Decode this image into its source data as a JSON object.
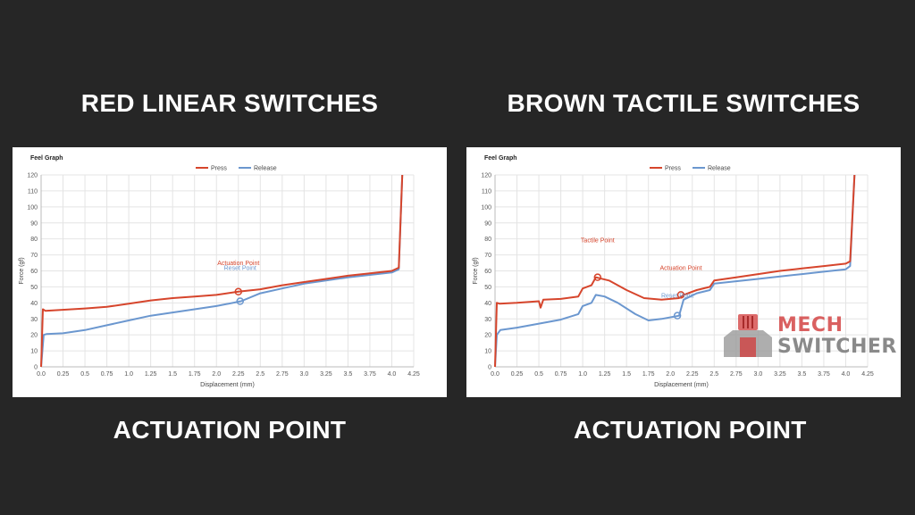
{
  "page": {
    "title_left": "RED LINEAR SWITCHES",
    "title_right": "BROWN TACTILE SWITCHES",
    "caption_left": "ACTUATION POINT",
    "caption_right": "ACTUATION POINT"
  },
  "logo": {
    "line1": "MECH",
    "line2": "SWITCHER",
    "accent": "#d23a3a"
  },
  "colors": {
    "press": "#d6452c",
    "release": "#6b97cf",
    "background": "#262626"
  },
  "chart_data": [
    {
      "type": "line",
      "title": "Feel Graph",
      "xlabel": "Displacement (mm)",
      "ylabel": "Force (gf)",
      "xlim": [
        0,
        4.25
      ],
      "ylim": [
        0,
        120
      ],
      "x_ticks": [
        "0.0",
        "0.25",
        "0.5",
        "0.75",
        "1.0",
        "1.25",
        "1.5",
        "1.75",
        "2.0",
        "2.25",
        "2.5",
        "2.75",
        "3.0",
        "3.25",
        "3.5",
        "3.75",
        "4.0",
        "4.25"
      ],
      "y_ticks": [
        "0",
        "10",
        "20",
        "30",
        "40",
        "50",
        "60",
        "70",
        "80",
        "90",
        "100",
        "110",
        "120"
      ],
      "grid": true,
      "legend": "top",
      "series": [
        {
          "name": "Press",
          "x": [
            0.0,
            0.02,
            0.05,
            0.2,
            0.5,
            0.75,
            1.0,
            1.25,
            1.5,
            1.75,
            2.0,
            2.25,
            2.5,
            2.75,
            3.0,
            3.25,
            3.5,
            3.75,
            4.0,
            4.08,
            4.12
          ],
          "y": [
            0,
            36,
            35,
            35.5,
            36.5,
            37.5,
            39.5,
            41.5,
            43,
            44,
            45,
            47,
            48.5,
            51,
            53,
            55,
            57,
            58.5,
            60,
            62,
            120
          ]
        },
        {
          "name": "Release",
          "x": [
            0.0,
            0.03,
            0.06,
            0.25,
            0.5,
            0.75,
            1.0,
            1.25,
            1.5,
            1.75,
            2.0,
            2.28,
            2.5,
            2.75,
            3.0,
            3.25,
            3.5,
            3.75,
            4.0,
            4.08,
            4.12
          ],
          "y": [
            0,
            20,
            20.5,
            21,
            23,
            26,
            29,
            32,
            34,
            36,
            38,
            41,
            46,
            49,
            52,
            54,
            56,
            57.5,
            59,
            61,
            120
          ]
        }
      ],
      "annotations": [
        {
          "label": "Actuation Point",
          "x": 2.25,
          "y": 47,
          "series": "Press"
        },
        {
          "label": "Reset Point",
          "x": 2.27,
          "y": 41,
          "series": "Release"
        }
      ]
    },
    {
      "type": "line",
      "title": "Feel Graph",
      "xlabel": "Displacement (mm)",
      "ylabel": "Force (gf)",
      "xlim": [
        0,
        4.25
      ],
      "ylim": [
        0,
        120
      ],
      "x_ticks": [
        "0.0",
        "0.25",
        "0.5",
        "0.75",
        "1.0",
        "1.25",
        "1.5",
        "1.75",
        "2.0",
        "2.25",
        "2.5",
        "2.75",
        "3.0",
        "3.25",
        "3.5",
        "3.75",
        "4.0",
        "4.25"
      ],
      "y_ticks": [
        "0",
        "10",
        "20",
        "30",
        "40",
        "50",
        "60",
        "70",
        "80",
        "90",
        "100",
        "110",
        "120"
      ],
      "grid": true,
      "legend": "top",
      "series": [
        {
          "name": "Press",
          "x": [
            0.0,
            0.02,
            0.05,
            0.25,
            0.5,
            0.52,
            0.55,
            0.75,
            0.95,
            1.0,
            1.1,
            1.15,
            1.3,
            1.5,
            1.7,
            1.9,
            2.1,
            2.15,
            2.3,
            2.45,
            2.5,
            2.75,
            3.0,
            3.25,
            3.5,
            3.75,
            4.0,
            4.05,
            4.1
          ],
          "y": [
            0,
            40,
            39.5,
            40,
            41,
            37,
            42,
            42.5,
            44,
            49,
            51,
            56,
            54,
            48,
            43,
            42,
            43,
            45,
            48,
            50,
            54,
            56,
            58,
            60,
            61.5,
            63,
            64.5,
            66,
            120
          ]
        },
        {
          "name": "Release",
          "x": [
            0.0,
            0.02,
            0.06,
            0.25,
            0.5,
            0.75,
            0.95,
            1.0,
            1.1,
            1.15,
            1.25,
            1.4,
            1.6,
            1.75,
            1.9,
            2.05,
            2.1,
            2.15,
            2.3,
            2.45,
            2.5,
            2.75,
            3.0,
            3.25,
            3.5,
            3.75,
            4.0,
            4.05,
            4.1
          ],
          "y": [
            0,
            20,
            23,
            24.5,
            27,
            29.5,
            33,
            38,
            40,
            45,
            44,
            40,
            33,
            29,
            30,
            31.5,
            32,
            42,
            46,
            48,
            52,
            53.5,
            55,
            56.5,
            58,
            59.5,
            61,
            63,
            120
          ]
        }
      ],
      "annotations": [
        {
          "label": "Tactile Point",
          "x": 1.17,
          "y": 56,
          "series": "Press"
        },
        {
          "label": "Actuation Point",
          "x": 2.12,
          "y": 45,
          "series": "Press"
        },
        {
          "label": "Reset Point",
          "x": 2.08,
          "y": 32,
          "series": "Release"
        }
      ]
    }
  ]
}
